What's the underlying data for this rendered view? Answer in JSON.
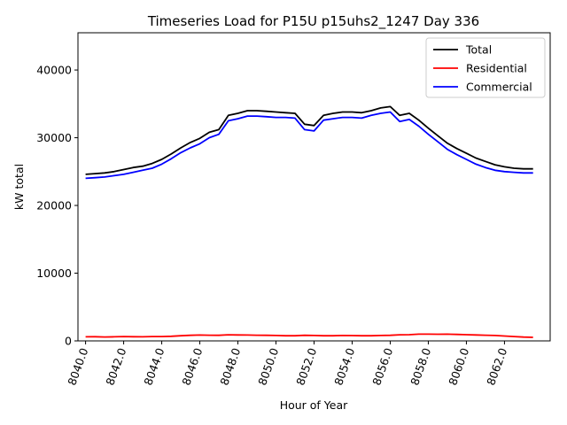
{
  "chart_data": {
    "type": "line",
    "title": "Timeseries Load for P15U p15uhs2_1247  Day 336",
    "xlabel": "Hour of Year",
    "ylabel": "kW total",
    "xlim": [
      8039.6,
      8064.4
    ],
    "ylim": [
      0,
      45500
    ],
    "xticks": [
      8040,
      8042,
      8044,
      8046,
      8048,
      8050,
      8052,
      8054,
      8056,
      8058,
      8060,
      8062
    ],
    "xtick_labels": [
      "8040.0",
      "8042.0",
      "8044.0",
      "8046.0",
      "8048.0",
      "8050.0",
      "8052.0",
      "8054.0",
      "8056.0",
      "8058.0",
      "8060.0",
      "8062.0"
    ],
    "yticks": [
      0,
      10000,
      20000,
      30000,
      40000
    ],
    "ytick_labels": [
      "0",
      "10000",
      "20000",
      "30000",
      "40000"
    ],
    "legend_position": "top-right",
    "x": [
      8040.0,
      8040.5,
      8041.0,
      8041.5,
      8042.0,
      8042.5,
      8043.0,
      8043.5,
      8044.0,
      8044.5,
      8045.0,
      8045.5,
      8046.0,
      8046.5,
      8047.0,
      8047.5,
      8048.0,
      8048.5,
      8049.0,
      8049.5,
      8050.0,
      8050.5,
      8051.0,
      8051.5,
      8052.0,
      8052.5,
      8053.0,
      8053.5,
      8054.0,
      8054.5,
      8055.0,
      8055.5,
      8056.0,
      8056.5,
      8057.0,
      8057.5,
      8058.0,
      8058.5,
      8059.0,
      8059.5,
      8060.0,
      8060.5,
      8061.0,
      8061.5,
      8062.0,
      8062.5,
      8063.0,
      8063.5
    ],
    "series": [
      {
        "name": "Total",
        "color": "#000000",
        "values": [
          24600,
          24700,
          24800,
          25000,
          25300,
          25600,
          25800,
          26200,
          26800,
          27600,
          28500,
          29300,
          29900,
          30800,
          31200,
          33300,
          33600,
          34000,
          34000,
          33900,
          33800,
          33700,
          33600,
          32000,
          31800,
          33300,
          33600,
          33800,
          33800,
          33700,
          34000,
          34400,
          34600,
          33300,
          33600,
          32600,
          31400,
          30300,
          29200,
          28400,
          27700,
          27000,
          26500,
          26000,
          25700,
          25500,
          25400,
          25400
        ]
      },
      {
        "name": "Residential",
        "color": "#ff0000",
        "values": [
          600,
          620,
          580,
          600,
          640,
          620,
          600,
          640,
          640,
          680,
          760,
          820,
          860,
          840,
          820,
          900,
          880,
          860,
          840,
          820,
          800,
          760,
          760,
          820,
          800,
          760,
          760,
          800,
          780,
          760,
          760,
          800,
          820,
          900,
          920,
          1000,
          1000,
          980,
          1000,
          960,
          920,
          880,
          840,
          800,
          720,
          640,
          560,
          520
        ]
      },
      {
        "name": "Commercial",
        "color": "#0000ff",
        "values": [
          24000,
          24100,
          24200,
          24400,
          24600,
          24900,
          25200,
          25500,
          26100,
          26900,
          27800,
          28500,
          29100,
          30000,
          30500,
          32500,
          32800,
          33200,
          33200,
          33100,
          33000,
          33000,
          32900,
          31200,
          31000,
          32600,
          32800,
          33000,
          33000,
          32900,
          33300,
          33600,
          33800,
          32400,
          32700,
          31700,
          30500,
          29400,
          28300,
          27500,
          26800,
          26100,
          25600,
          25200,
          25000,
          24900,
          24800,
          24800
        ]
      }
    ]
  }
}
